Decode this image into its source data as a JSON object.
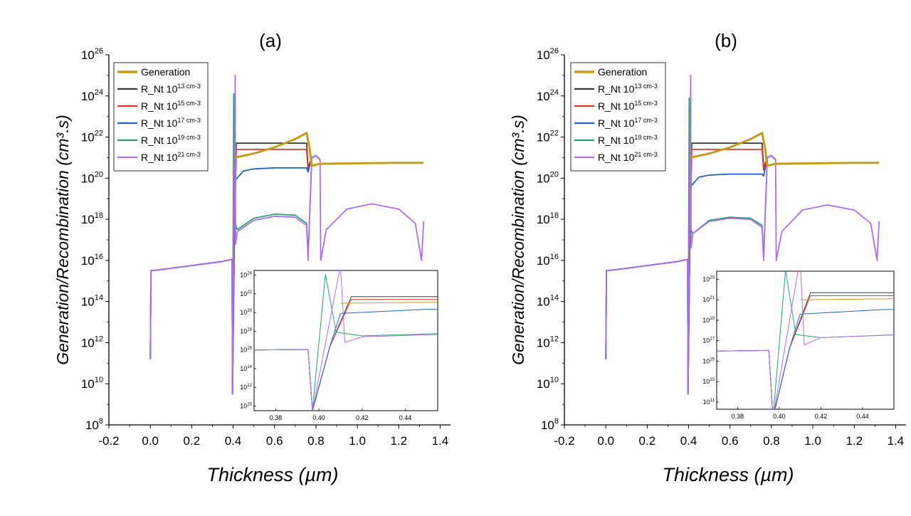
{
  "chart_data": [
    {
      "type": "line",
      "title": "(a)",
      "xlabel": "Thickness (µm)",
      "ylabel": "Generation/Recombination (cm³.s)",
      "y_log_scale": true,
      "xlim": [
        -0.2,
        1.45
      ],
      "ylim_exponent": [
        8,
        26
      ],
      "x_tick_labels": [
        "-0.2",
        "0.0",
        "0.2",
        "0.4",
        "0.6",
        "0.8",
        "1.0",
        "1.2",
        "1.4"
      ],
      "y_tick_exponents": [
        "8",
        "10",
        "12",
        "14",
        "16",
        "18",
        "20",
        "22",
        "24",
        "26"
      ],
      "legend_position": "top-left",
      "legend_labels": [
        {
          "prefix": "Generation",
          "exp": "",
          "suffix": ""
        },
        {
          "prefix": "R_Nt 10",
          "exp": "13",
          "suffix": " cm-3"
        },
        {
          "prefix": "R_Nt 10",
          "exp": "15",
          "suffix": " cm-3"
        },
        {
          "prefix": "R_Nt 10",
          "exp": "17",
          "suffix": " cm-3"
        },
        {
          "prefix": "R_Nt 10",
          "exp": "19",
          "suffix": " cm-3"
        },
        {
          "prefix": "R_Nt 10",
          "exp": "21",
          "suffix": " cm-3"
        }
      ],
      "series": [
        {
          "name": "Generation",
          "color": "#c69c1c",
          "log10_points": [
            [
              0.41,
              21.0
            ],
            [
              0.5,
              21.2
            ],
            [
              0.6,
              21.5
            ],
            [
              0.7,
              21.9
            ],
            [
              0.755,
              22.2
            ],
            [
              0.77,
              21.4
            ],
            [
              0.78,
              20.6
            ],
            [
              0.82,
              20.7
            ],
            [
              1.0,
              20.72
            ],
            [
              1.2,
              20.75
            ],
            [
              1.32,
              20.75
            ]
          ]
        },
        {
          "name": "R_Nt 10^13 cm-3",
          "color": "#3a3a3a",
          "log10_points": [
            [
              0.0,
              11.2
            ],
            [
              0.003,
              15.5
            ],
            [
              0.05,
              15.55
            ],
            [
              0.2,
              15.75
            ],
            [
              0.35,
              15.95
            ],
            [
              0.395,
              16.05
            ],
            [
              0.397,
              9.5
            ],
            [
              0.405,
              16.3
            ],
            [
              0.415,
              21.7
            ],
            [
              0.5,
              21.7
            ],
            [
              0.6,
              21.7
            ],
            [
              0.7,
              21.7
            ],
            [
              0.755,
              21.7
            ],
            [
              0.762,
              20.5
            ],
            [
              0.78,
              21.0
            ],
            [
              0.8,
              21.1
            ],
            [
              0.82,
              20.9
            ]
          ]
        },
        {
          "name": "R_Nt 10^15 cm-3",
          "color": "#e0352b",
          "log10_points": [
            [
              0.0,
              11.2
            ],
            [
              0.003,
              15.5
            ],
            [
              0.05,
              15.55
            ],
            [
              0.2,
              15.75
            ],
            [
              0.35,
              15.95
            ],
            [
              0.395,
              16.05
            ],
            [
              0.397,
              9.5
            ],
            [
              0.405,
              16.3
            ],
            [
              0.415,
              21.4
            ],
            [
              0.5,
              21.4
            ],
            [
              0.6,
              21.4
            ],
            [
              0.7,
              21.4
            ],
            [
              0.755,
              21.4
            ],
            [
              0.762,
              20.4
            ],
            [
              0.78,
              21.0
            ],
            [
              0.8,
              21.1
            ],
            [
              0.82,
              20.9
            ]
          ]
        },
        {
          "name": "R_Nt 10^17 cm-3",
          "color": "#1f63c6",
          "log10_points": [
            [
              0.0,
              11.2
            ],
            [
              0.003,
              15.5
            ],
            [
              0.05,
              15.55
            ],
            [
              0.2,
              15.75
            ],
            [
              0.35,
              15.95
            ],
            [
              0.395,
              16.05
            ],
            [
              0.397,
              9.5
            ],
            [
              0.405,
              16.3
            ],
            [
              0.41,
              19.9
            ],
            [
              0.45,
              20.35
            ],
            [
              0.5,
              20.45
            ],
            [
              0.6,
              20.5
            ],
            [
              0.7,
              20.5
            ],
            [
              0.755,
              20.5
            ],
            [
              0.762,
              20.3
            ],
            [
              0.78,
              21.0
            ],
            [
              0.8,
              21.1
            ],
            [
              0.82,
              20.9
            ]
          ]
        },
        {
          "name": "R_Nt 10^19 cm-3",
          "color": "#27a36b",
          "log10_points": [
            [
              0.0,
              11.2
            ],
            [
              0.003,
              15.5
            ],
            [
              0.05,
              15.55
            ],
            [
              0.2,
              15.75
            ],
            [
              0.35,
              15.95
            ],
            [
              0.395,
              16.05
            ],
            [
              0.397,
              9.5
            ],
            [
              0.403,
              24.1
            ],
            [
              0.408,
              17.9
            ],
            [
              0.42,
              17.5
            ],
            [
              0.5,
              18.05
            ],
            [
              0.6,
              18.25
            ],
            [
              0.7,
              18.2
            ],
            [
              0.755,
              17.8
            ],
            [
              0.762,
              16.2
            ],
            [
              0.78,
              21.0
            ],
            [
              0.8,
              21.1
            ],
            [
              0.82,
              20.9
            ]
          ]
        },
        {
          "name": "R_Nt 10^21 cm-3",
          "color": "#b06ee8",
          "log10_points": [
            [
              0.0,
              11.2
            ],
            [
              0.003,
              15.5
            ],
            [
              0.05,
              15.55
            ],
            [
              0.2,
              15.75
            ],
            [
              0.35,
              15.95
            ],
            [
              0.395,
              16.05
            ],
            [
              0.397,
              9.5
            ],
            [
              0.41,
              25.0
            ],
            [
              0.412,
              16.8
            ],
            [
              0.42,
              17.4
            ],
            [
              0.5,
              17.95
            ],
            [
              0.6,
              18.15
            ],
            [
              0.7,
              18.1
            ],
            [
              0.755,
              17.7
            ],
            [
              0.762,
              16.0
            ],
            [
              0.78,
              21.0
            ],
            [
              0.8,
              21.1
            ],
            [
              0.82,
              20.9
            ],
            [
              0.823,
              16.0
            ],
            [
              0.85,
              17.5
            ],
            [
              0.95,
              18.5
            ],
            [
              1.07,
              18.75
            ],
            [
              1.2,
              18.5
            ],
            [
              1.28,
              17.8
            ],
            [
              1.31,
              16.0
            ],
            [
              1.32,
              17.9
            ]
          ]
        }
      ],
      "inset": {
        "x_tick_labels": [
          "0.38",
          "0.40",
          "0.42",
          "0.44"
        ],
        "xlim": [
          0.37,
          0.455
        ],
        "y_tick_exponents": [
          "10",
          "12",
          "14",
          "16",
          "18",
          "20",
          "22",
          "24"
        ],
        "ylim_exponent": [
          9.5,
          24.5
        ]
      }
    },
    {
      "type": "line",
      "title": "(b)",
      "xlabel": "Thickness (µm)",
      "ylabel": "Generation/Recombination (cm³.s)",
      "y_log_scale": true,
      "xlim": [
        -0.2,
        1.45
      ],
      "ylim_exponent": [
        8,
        26
      ],
      "x_tick_labels": [
        "-0.2",
        "0.0",
        "0.2",
        "0.4",
        "0.6",
        "0.8",
        "1.0",
        "1.2",
        "1.4"
      ],
      "y_tick_exponents": [
        "8",
        "10",
        "12",
        "14",
        "16",
        "18",
        "20",
        "22",
        "24",
        "26"
      ],
      "legend_position": "top-left",
      "legend_labels": [
        {
          "prefix": "Generation",
          "exp": "",
          "suffix": ""
        },
        {
          "prefix": "R_Nt 10",
          "exp": "13",
          "suffix": " cm-3"
        },
        {
          "prefix": "R_Nt 10",
          "exp": "15",
          "suffix": " cm-3"
        },
        {
          "prefix": "R_Nt 10",
          "exp": "17",
          "suffix": " cm-3"
        },
        {
          "prefix": "R_Nt 10",
          "exp": "19",
          "suffix": " cm-3"
        },
        {
          "prefix": "R_Nt 10",
          "exp": "21",
          "suffix": " cm-3"
        }
      ],
      "series": [
        {
          "name": "Generation",
          "color": "#c69c1c",
          "log10_points": [
            [
              0.41,
              21.0
            ],
            [
              0.5,
              21.2
            ],
            [
              0.6,
              21.5
            ],
            [
              0.7,
              21.9
            ],
            [
              0.755,
              22.2
            ],
            [
              0.77,
              21.4
            ],
            [
              0.78,
              20.6
            ],
            [
              0.82,
              20.7
            ],
            [
              1.0,
              20.72
            ],
            [
              1.2,
              20.75
            ],
            [
              1.32,
              20.75
            ]
          ]
        },
        {
          "name": "R_Nt 10^13 cm-3",
          "color": "#3a3a3a",
          "log10_points": [
            [
              0.0,
              11.2
            ],
            [
              0.003,
              15.5
            ],
            [
              0.05,
              15.55
            ],
            [
              0.2,
              15.75
            ],
            [
              0.35,
              15.95
            ],
            [
              0.395,
              16.05
            ],
            [
              0.397,
              9.5
            ],
            [
              0.405,
              16.3
            ],
            [
              0.415,
              21.7
            ],
            [
              0.5,
              21.7
            ],
            [
              0.6,
              21.7
            ],
            [
              0.7,
              21.7
            ],
            [
              0.755,
              21.7
            ],
            [
              0.762,
              20.5
            ],
            [
              0.78,
              21.0
            ],
            [
              0.8,
              21.1
            ],
            [
              0.82,
              20.9
            ]
          ]
        },
        {
          "name": "R_Nt 10^15 cm-3",
          "color": "#e0352b",
          "log10_points": [
            [
              0.0,
              11.2
            ],
            [
              0.003,
              15.5
            ],
            [
              0.05,
              15.55
            ],
            [
              0.2,
              15.75
            ],
            [
              0.35,
              15.95
            ],
            [
              0.395,
              16.05
            ],
            [
              0.397,
              9.5
            ],
            [
              0.405,
              16.3
            ],
            [
              0.415,
              21.4
            ],
            [
              0.5,
              21.4
            ],
            [
              0.6,
              21.4
            ],
            [
              0.7,
              21.4
            ],
            [
              0.755,
              21.4
            ],
            [
              0.762,
              20.4
            ],
            [
              0.78,
              21.0
            ],
            [
              0.8,
              21.1
            ],
            [
              0.82,
              20.9
            ]
          ]
        },
        {
          "name": "R_Nt 10^17 cm-3",
          "color": "#1f63c6",
          "log10_points": [
            [
              0.0,
              11.2
            ],
            [
              0.003,
              15.5
            ],
            [
              0.05,
              15.55
            ],
            [
              0.2,
              15.75
            ],
            [
              0.35,
              15.95
            ],
            [
              0.395,
              16.05
            ],
            [
              0.397,
              9.5
            ],
            [
              0.405,
              16.3
            ],
            [
              0.41,
              19.6
            ],
            [
              0.45,
              20.05
            ],
            [
              0.5,
              20.15
            ],
            [
              0.6,
              20.2
            ],
            [
              0.7,
              20.2
            ],
            [
              0.755,
              20.2
            ],
            [
              0.762,
              20.1
            ],
            [
              0.78,
              21.0
            ],
            [
              0.8,
              21.1
            ],
            [
              0.82,
              20.9
            ]
          ]
        },
        {
          "name": "R_Nt 10^19 cm-3",
          "color": "#27a36b",
          "log10_points": [
            [
              0.0,
              11.2
            ],
            [
              0.003,
              15.5
            ],
            [
              0.05,
              15.55
            ],
            [
              0.2,
              15.75
            ],
            [
              0.35,
              15.95
            ],
            [
              0.395,
              16.05
            ],
            [
              0.397,
              9.5
            ],
            [
              0.403,
              23.9
            ],
            [
              0.408,
              17.6
            ],
            [
              0.42,
              17.3
            ],
            [
              0.5,
              17.95
            ],
            [
              0.6,
              18.1
            ],
            [
              0.7,
              18.05
            ],
            [
              0.755,
              17.7
            ],
            [
              0.762,
              16.1
            ],
            [
              0.78,
              21.0
            ],
            [
              0.8,
              21.1
            ],
            [
              0.82,
              20.9
            ]
          ]
        },
        {
          "name": "R_Nt 10^21 cm-3",
          "color": "#b06ee8",
          "log10_points": [
            [
              0.0,
              11.2
            ],
            [
              0.003,
              15.5
            ],
            [
              0.05,
              15.55
            ],
            [
              0.2,
              15.75
            ],
            [
              0.35,
              15.95
            ],
            [
              0.395,
              16.05
            ],
            [
              0.397,
              9.5
            ],
            [
              0.41,
              25.0
            ],
            [
              0.412,
              16.6
            ],
            [
              0.42,
              17.3
            ],
            [
              0.5,
              17.9
            ],
            [
              0.6,
              18.05
            ],
            [
              0.7,
              18.0
            ],
            [
              0.755,
              17.6
            ],
            [
              0.762,
              16.0
            ],
            [
              0.78,
              21.0
            ],
            [
              0.8,
              21.1
            ],
            [
              0.82,
              20.9
            ],
            [
              0.823,
              16.0
            ],
            [
              0.85,
              17.4
            ],
            [
              0.95,
              18.45
            ],
            [
              1.07,
              18.7
            ],
            [
              1.2,
              18.45
            ],
            [
              1.28,
              17.8
            ],
            [
              1.31,
              16.0
            ],
            [
              1.32,
              17.9
            ]
          ]
        }
      ],
      "inset": {
        "x_tick_labels": [
          "0.38",
          "0.40",
          "0.42",
          "0.44"
        ],
        "xlim": [
          0.37,
          0.455
        ],
        "y_tick_exponents": [
          "11",
          "13",
          "15",
          "17",
          "19",
          "21",
          "23"
        ],
        "ylim_exponent": [
          10.3,
          23.8
        ]
      }
    }
  ]
}
